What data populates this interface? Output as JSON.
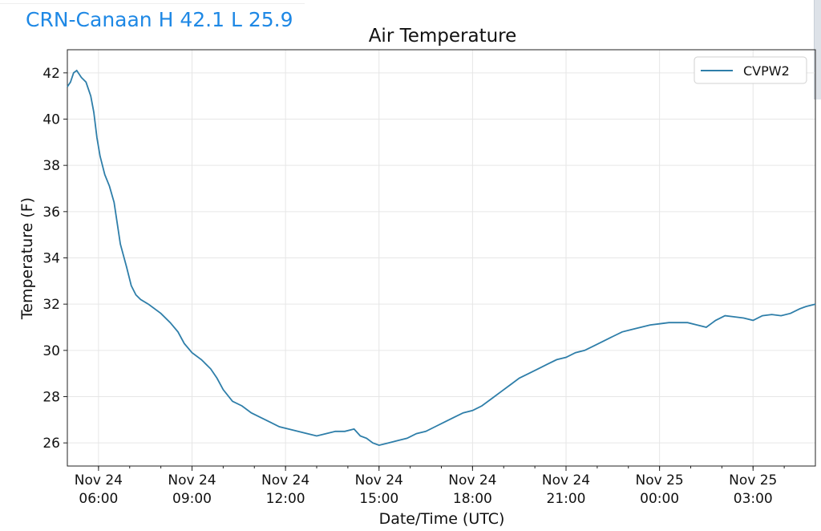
{
  "header": {
    "station_label": "CRN-Canaan H 42.1 L 25.9"
  },
  "colors": {
    "header_text": "#1e88e5",
    "series_line": "#2e7ea9",
    "grid": "#e6e6e6"
  },
  "chart_data": {
    "type": "line",
    "title": "Air Temperature",
    "xlabel": "Date/Time (UTC)",
    "ylabel": "Temperature (F)",
    "ylim": [
      25,
      43
    ],
    "xlim": [
      "Nov 24 05:00",
      "Nov 25 05:00"
    ],
    "yticks": [
      26,
      28,
      30,
      32,
      34,
      36,
      38,
      40,
      42
    ],
    "xticks": [
      {
        "h": 6,
        "line1": "Nov 24",
        "line2": "06:00"
      },
      {
        "h": 9,
        "line1": "Nov 24",
        "line2": "09:00"
      },
      {
        "h": 12,
        "line1": "Nov 24",
        "line2": "12:00"
      },
      {
        "h": 15,
        "line1": "Nov 24",
        "line2": "15:00"
      },
      {
        "h": 18,
        "line1": "Nov 24",
        "line2": "18:00"
      },
      {
        "h": 21,
        "line1": "Nov 24",
        "line2": "21:00"
      },
      {
        "h": 24,
        "line1": "Nov 25",
        "line2": "00:00"
      },
      {
        "h": 27,
        "line1": "Nov 25",
        "line2": "03:00"
      }
    ],
    "grid": true,
    "legend_position": "top-right",
    "series": [
      {
        "name": "CVPW2",
        "color": "#2e7ea9",
        "x": [
          5.0,
          5.1,
          5.2,
          5.3,
          5.45,
          5.6,
          5.75,
          5.85,
          5.95,
          6.05,
          6.2,
          6.35,
          6.5,
          6.7,
          6.9,
          7.05,
          7.2,
          7.35,
          7.6,
          8.0,
          8.3,
          8.55,
          8.75,
          9.0,
          9.3,
          9.6,
          9.8,
          10.0,
          10.3,
          10.6,
          10.9,
          11.2,
          11.5,
          11.8,
          12.1,
          12.4,
          12.7,
          13.0,
          13.3,
          13.6,
          13.9,
          14.2,
          14.4,
          14.6,
          14.8,
          15.0,
          15.3,
          15.6,
          15.9,
          16.2,
          16.5,
          16.8,
          17.1,
          17.4,
          17.7,
          18.0,
          18.3,
          18.6,
          18.9,
          19.2,
          19.5,
          19.8,
          20.1,
          20.4,
          20.7,
          21.0,
          21.3,
          21.6,
          21.9,
          22.2,
          22.5,
          22.8,
          23.1,
          23.4,
          23.7,
          24.0,
          24.3,
          24.6,
          24.9,
          25.2,
          25.5,
          25.8,
          26.1,
          26.4,
          26.7,
          27.0,
          27.3,
          27.6,
          27.9,
          28.2,
          28.5,
          28.7,
          29.0
        ],
        "y": [
          41.4,
          41.6,
          42.0,
          42.1,
          41.8,
          41.6,
          41.0,
          40.3,
          39.2,
          38.4,
          37.6,
          37.1,
          36.4,
          34.6,
          33.6,
          32.8,
          32.4,
          32.2,
          32.0,
          31.6,
          31.2,
          30.8,
          30.3,
          29.9,
          29.6,
          29.2,
          28.8,
          28.3,
          27.8,
          27.6,
          27.3,
          27.1,
          26.9,
          26.7,
          26.6,
          26.5,
          26.4,
          26.3,
          26.4,
          26.5,
          26.5,
          26.6,
          26.3,
          26.2,
          26.0,
          25.9,
          26.0,
          26.1,
          26.2,
          26.4,
          26.5,
          26.7,
          26.9,
          27.1,
          27.3,
          27.4,
          27.6,
          27.9,
          28.2,
          28.5,
          28.8,
          29.0,
          29.2,
          29.4,
          29.6,
          29.7,
          29.9,
          30.0,
          30.2,
          30.4,
          30.6,
          30.8,
          30.9,
          31.0,
          31.1,
          31.15,
          31.2,
          31.2,
          31.2,
          31.1,
          31.0,
          31.3,
          31.5,
          31.45,
          31.4,
          31.3,
          31.5,
          31.55,
          31.5,
          31.6,
          31.8,
          31.9,
          32.0
        ]
      }
    ]
  }
}
